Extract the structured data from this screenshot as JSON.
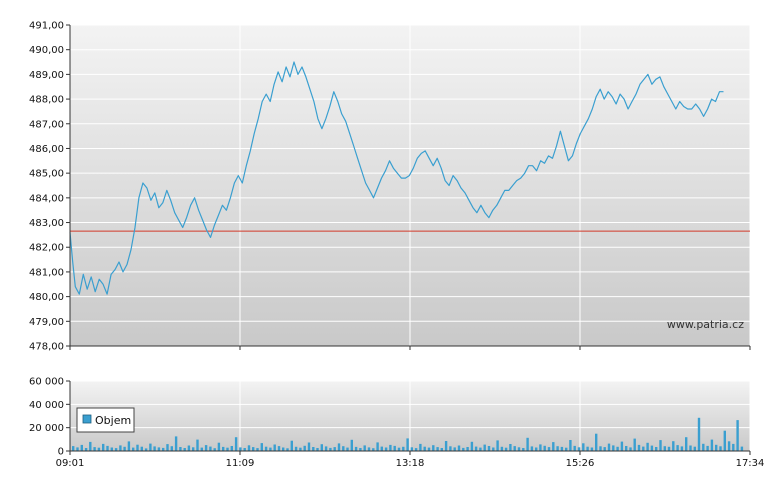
{
  "chart_data": [
    {
      "type": "line",
      "name": "price",
      "y_range": [
        478,
        491
      ],
      "y_ticks": [
        "491,00",
        "490,00",
        "489,00",
        "488,00",
        "487,00",
        "486,00",
        "485,00",
        "484,00",
        "483,00",
        "482,00",
        "481,00",
        "480,00",
        "479,00",
        "478,00"
      ],
      "reference_line": 482.65,
      "watermark": "www.patria.cz",
      "x_range_minutes": [
        541,
        1054
      ],
      "series": [
        {
          "color": "#3a9fd0",
          "points": [
            [
              541,
              482.6
            ],
            [
              543,
              481.4
            ],
            [
              545,
              480.4
            ],
            [
              548,
              480.1
            ],
            [
              551,
              480.9
            ],
            [
              554,
              480.3
            ],
            [
              557,
              480.8
            ],
            [
              560,
              480.2
            ],
            [
              563,
              480.7
            ],
            [
              566,
              480.5
            ],
            [
              569,
              480.1
            ],
            [
              572,
              480.9
            ],
            [
              575,
              481.1
            ],
            [
              578,
              481.4
            ],
            [
              581,
              481.0
            ],
            [
              584,
              481.3
            ],
            [
              587,
              481.9
            ],
            [
              590,
              482.8
            ],
            [
              593,
              484.0
            ],
            [
              596,
              484.6
            ],
            [
              599,
              484.4
            ],
            [
              602,
              483.9
            ],
            [
              605,
              484.2
            ],
            [
              608,
              483.6
            ],
            [
              611,
              483.8
            ],
            [
              614,
              484.3
            ],
            [
              617,
              483.9
            ],
            [
              620,
              483.4
            ],
            [
              623,
              483.1
            ],
            [
              626,
              482.8
            ],
            [
              629,
              483.2
            ],
            [
              632,
              483.7
            ],
            [
              635,
              484.0
            ],
            [
              638,
              483.5
            ],
            [
              641,
              483.1
            ],
            [
              644,
              482.7
            ],
            [
              647,
              482.4
            ],
            [
              650,
              482.9
            ],
            [
              653,
              483.3
            ],
            [
              656,
              483.7
            ],
            [
              659,
              483.5
            ],
            [
              662,
              484.0
            ],
            [
              665,
              484.6
            ],
            [
              668,
              484.9
            ],
            [
              671,
              484.6
            ],
            [
              674,
              485.3
            ],
            [
              677,
              485.9
            ],
            [
              680,
              486.6
            ],
            [
              683,
              487.2
            ],
            [
              686,
              487.9
            ],
            [
              689,
              488.2
            ],
            [
              692,
              487.9
            ],
            [
              695,
              488.6
            ],
            [
              698,
              489.1
            ],
            [
              701,
              488.7
            ],
            [
              704,
              489.3
            ],
            [
              707,
              488.9
            ],
            [
              710,
              489.5
            ],
            [
              713,
              489.0
            ],
            [
              716,
              489.3
            ],
            [
              719,
              488.9
            ],
            [
              722,
              488.4
            ],
            [
              725,
              487.9
            ],
            [
              728,
              487.2
            ],
            [
              731,
              486.8
            ],
            [
              734,
              487.2
            ],
            [
              737,
              487.7
            ],
            [
              740,
              488.3
            ],
            [
              743,
              487.9
            ],
            [
              746,
              487.4
            ],
            [
              749,
              487.1
            ],
            [
              752,
              486.6
            ],
            [
              755,
              486.1
            ],
            [
              758,
              485.6
            ],
            [
              761,
              485.1
            ],
            [
              764,
              484.6
            ],
            [
              767,
              484.3
            ],
            [
              770,
              484.0
            ],
            [
              773,
              484.4
            ],
            [
              776,
              484.8
            ],
            [
              779,
              485.1
            ],
            [
              782,
              485.5
            ],
            [
              785,
              485.2
            ],
            [
              788,
              485.0
            ],
            [
              791,
              484.8
            ],
            [
              794,
              484.8
            ],
            [
              797,
              484.9
            ],
            [
              800,
              485.2
            ],
            [
              803,
              485.6
            ],
            [
              806,
              485.8
            ],
            [
              809,
              485.9
            ],
            [
              812,
              485.6
            ],
            [
              815,
              485.3
            ],
            [
              818,
              485.6
            ],
            [
              821,
              485.2
            ],
            [
              824,
              484.7
            ],
            [
              827,
              484.5
            ],
            [
              830,
              484.9
            ],
            [
              833,
              484.7
            ],
            [
              836,
              484.4
            ],
            [
              839,
              484.2
            ],
            [
              842,
              483.9
            ],
            [
              845,
              483.6
            ],
            [
              848,
              483.4
            ],
            [
              851,
              483.7
            ],
            [
              854,
              483.4
            ],
            [
              857,
              483.2
            ],
            [
              860,
              483.5
            ],
            [
              863,
              483.7
            ],
            [
              866,
              484.0
            ],
            [
              869,
              484.3
            ],
            [
              872,
              484.3
            ],
            [
              875,
              484.5
            ],
            [
              878,
              484.7
            ],
            [
              881,
              484.8
            ],
            [
              884,
              485.0
            ],
            [
              887,
              485.3
            ],
            [
              890,
              485.3
            ],
            [
              893,
              485.1
            ],
            [
              896,
              485.5
            ],
            [
              899,
              485.4
            ],
            [
              902,
              485.7
            ],
            [
              905,
              485.6
            ],
            [
              908,
              486.1
            ],
            [
              911,
              486.7
            ],
            [
              914,
              486.1
            ],
            [
              917,
              485.5
            ],
            [
              920,
              485.7
            ],
            [
              923,
              486.2
            ],
            [
              926,
              486.6
            ],
            [
              929,
              486.9
            ],
            [
              932,
              487.2
            ],
            [
              935,
              487.6
            ],
            [
              938,
              488.1
            ],
            [
              941,
              488.4
            ],
            [
              944,
              488.0
            ],
            [
              947,
              488.3
            ],
            [
              950,
              488.1
            ],
            [
              953,
              487.8
            ],
            [
              956,
              488.2
            ],
            [
              959,
              488.0
            ],
            [
              962,
              487.6
            ],
            [
              965,
              487.9
            ],
            [
              968,
              488.2
            ],
            [
              971,
              488.6
            ],
            [
              974,
              488.8
            ],
            [
              977,
              489.0
            ],
            [
              980,
              488.6
            ],
            [
              983,
              488.8
            ],
            [
              986,
              488.9
            ],
            [
              989,
              488.5
            ],
            [
              992,
              488.2
            ],
            [
              995,
              487.9
            ],
            [
              998,
              487.6
            ],
            [
              1001,
              487.9
            ],
            [
              1004,
              487.7
            ],
            [
              1007,
              487.6
            ],
            [
              1010,
              487.6
            ],
            [
              1013,
              487.8
            ],
            [
              1016,
              487.6
            ],
            [
              1019,
              487.3
            ],
            [
              1022,
              487.6
            ],
            [
              1025,
              488.0
            ],
            [
              1028,
              487.9
            ],
            [
              1031,
              488.3
            ],
            [
              1034,
              488.3
            ]
          ]
        }
      ]
    },
    {
      "type": "bar",
      "name": "volume",
      "y_range": [
        0,
        60000
      ],
      "y_ticks": [
        "60 000",
        "40 000",
        "20 000",
        "0"
      ],
      "legend": [
        "Objem"
      ],
      "x_tick_labels": [
        "09:01",
        "11:09",
        "13:18",
        "15:26",
        "17:34"
      ],
      "series": [
        {
          "name": "Objem",
          "color": "#3a9fd0",
          "values": [
            4200,
            3100,
            5200,
            2600,
            7800,
            3300,
            2800,
            6100,
            4400,
            3000,
            2500,
            4800,
            3600,
            8200,
            2900,
            5400,
            3700,
            2200,
            6300,
            3900,
            3100,
            2700,
            5900,
            4100,
            12500,
            3400,
            2600,
            4700,
            3200,
            9800,
            2900,
            5100,
            3800,
            2400,
            7100,
            3500,
            2800,
            4300,
            11800,
            3100,
            2600,
            4900,
            3300,
            2500,
            6800,
            3700,
            2900,
            5600,
            4200,
            3000,
            2300,
            8800,
            3600,
            2800,
            4500,
            7300,
            3400,
            2600,
            5800,
            3900,
            2700,
            3300,
            6500,
            4100,
            2900,
            9600,
            3500,
            2600,
            4800,
            3100,
            2400,
            7400,
            3800,
            3000,
            5200,
            4400,
            2800,
            3600,
            10800,
            3200,
            2500,
            6100,
            3700,
            2900,
            5000,
            3300,
            2600,
            8600,
            4000,
            3100,
            4700,
            2700,
            3400,
            7900,
            3800,
            2900,
            5500,
            4300,
            3000,
            9100,
            3600,
            2800,
            6000,
            4200,
            3200,
            2600,
            11300,
            3900,
            3000,
            5700,
            4500,
            3300,
            7600,
            4100,
            3500,
            2800,
            9400,
            4400,
            3200,
            6600,
            3700,
            3000,
            14800,
            4000,
            3300,
            6300,
            4800,
            3600,
            8100,
            4300,
            3100,
            10600,
            5200,
            3800,
            7000,
            4600,
            3400,
            9300,
            4100,
            3600,
            8400,
            5100,
            3900,
            11800,
            4700,
            3700,
            28500,
            6200,
            4400,
            9800,
            5300,
            4000,
            17400,
            8300,
            6100,
            26500,
            3800
          ]
        }
      ]
    }
  ]
}
